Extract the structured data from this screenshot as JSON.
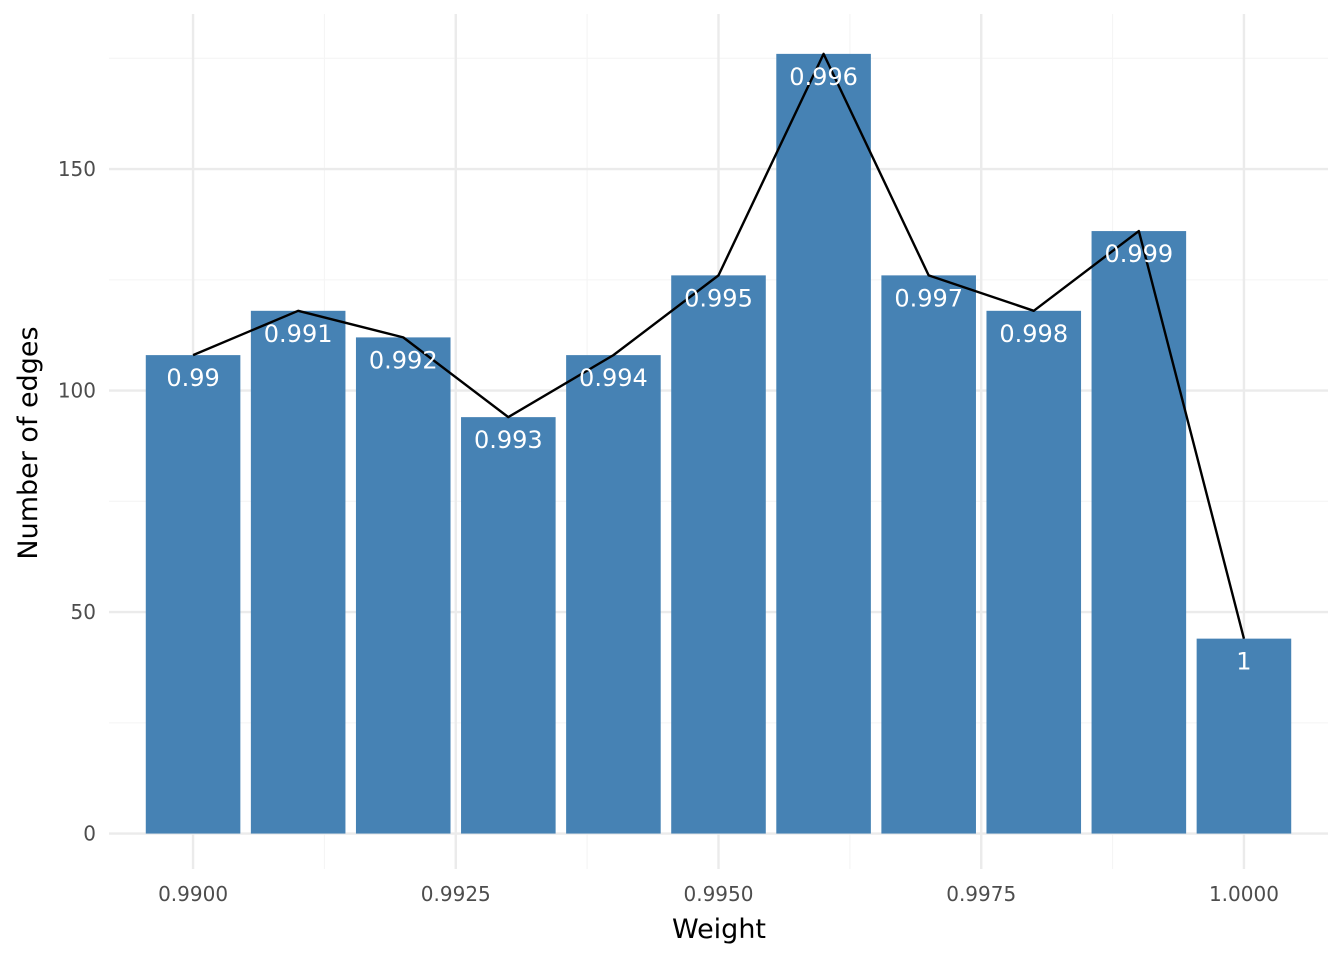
{
  "chart_data": {
    "type": "bar",
    "title": "",
    "xlabel": "Weight",
    "ylabel": "Number of edges",
    "x": [
      0.99,
      0.991,
      0.992,
      0.993,
      0.994,
      0.995,
      0.996,
      0.997,
      0.998,
      0.999,
      1.0
    ],
    "values": [
      108,
      118,
      112,
      94,
      108,
      126,
      176,
      126,
      118,
      136,
      44
    ],
    "bar_labels": [
      "0.99",
      "0.991",
      "0.992",
      "0.993",
      "0.994",
      "0.995",
      "0.996",
      "0.997",
      "0.998",
      "0.999",
      "1"
    ],
    "xlim": [
      0.9892,
      1.0008
    ],
    "ylim": [
      -8,
      185
    ],
    "x_ticks": [
      0.99,
      0.9925,
      0.995,
      0.9975,
      1.0
    ],
    "x_tick_labels": [
      "0.9900",
      "0.9925",
      "0.9950",
      "0.9975",
      "1.0000"
    ],
    "y_ticks": [
      0,
      50,
      100,
      150
    ],
    "y_tick_labels": [
      "0",
      "50",
      "100",
      "150"
    ],
    "bar_width": 0.0009,
    "grid": true,
    "legend": "none",
    "overlay_line": true,
    "colors": {
      "bar": "#4682B4",
      "line": "#000000",
      "grid_major": "#EBEBEB",
      "grid_minor": "#F5F5F5",
      "bar_label": "#FFFFFF"
    }
  }
}
